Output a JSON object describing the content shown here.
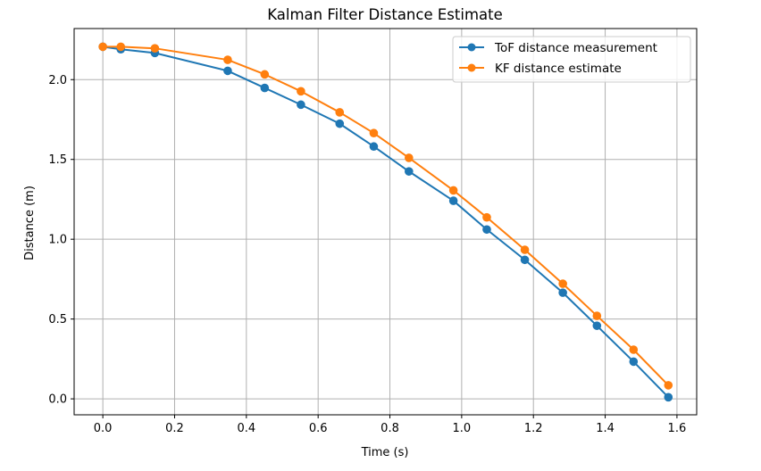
{
  "chart_data": {
    "type": "line",
    "title": "Kalman Filter Distance Estimate",
    "xlabel": "Time (s)",
    "ylabel": "Distance (m)",
    "xlim": [
      -0.08,
      1.655
    ],
    "ylim": [
      -0.1,
      2.32
    ],
    "xticks": [
      0.0,
      0.2,
      0.4,
      0.6,
      0.8,
      1.0,
      1.2,
      1.4,
      1.6
    ],
    "xtick_labels": [
      "0.0",
      "0.2",
      "0.4",
      "0.6",
      "0.8",
      "1.0",
      "1.2",
      "1.4",
      "1.6"
    ],
    "yticks": [
      0.0,
      0.5,
      1.0,
      1.5,
      2.0
    ],
    "ytick_labels": [
      "0.0",
      "0.5",
      "1.0",
      "1.5",
      "2.0"
    ],
    "grid": true,
    "legend_position": "top-right",
    "x": [
      0.0,
      0.05,
      0.145,
      0.348,
      0.451,
      0.552,
      0.66,
      0.755,
      0.853,
      0.977,
      1.07,
      1.176,
      1.282,
      1.377,
      1.479,
      1.576
    ],
    "series": [
      {
        "name": "ToF distance measurement",
        "color": "#1f77b4",
        "marker": "circle",
        "values": [
          2.206,
          2.19,
          2.167,
          2.055,
          1.948,
          1.843,
          1.724,
          1.581,
          1.425,
          1.241,
          1.061,
          0.871,
          0.665,
          0.458,
          0.233,
          0.01
        ]
      },
      {
        "name": "KF distance estimate",
        "color": "#ff7f0e",
        "marker": "circle",
        "values": [
          2.206,
          2.206,
          2.196,
          2.124,
          2.033,
          1.927,
          1.795,
          1.665,
          1.51,
          1.306,
          1.137,
          0.934,
          0.721,
          0.52,
          0.308,
          0.085
        ]
      }
    ]
  }
}
